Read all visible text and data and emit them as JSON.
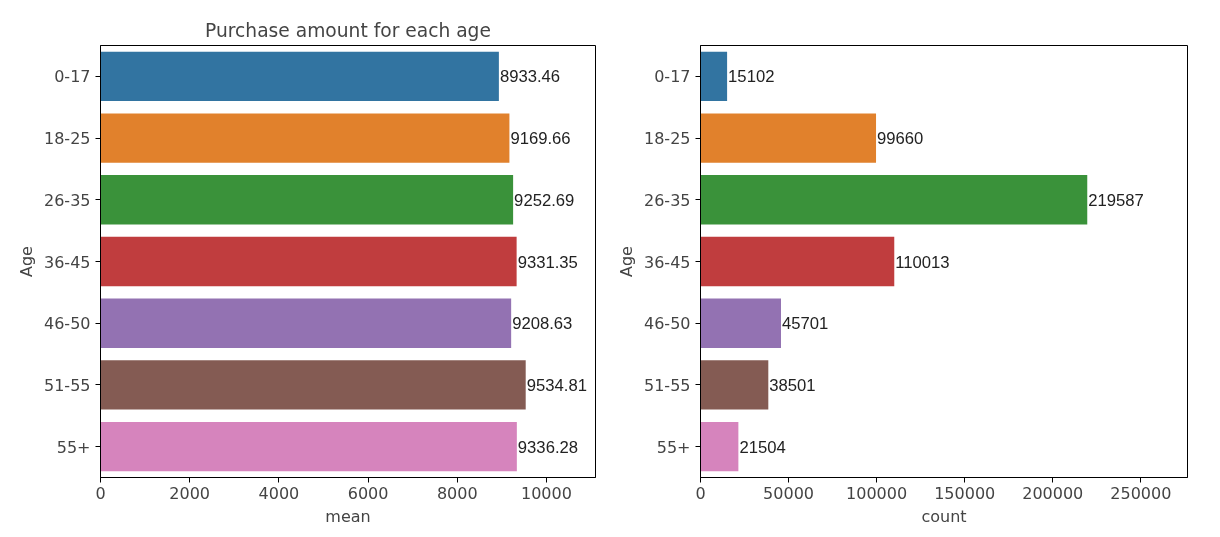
{
  "chart_data": [
    {
      "type": "bar",
      "orientation": "horizontal",
      "title": "Purchase amount for each age",
      "xlabel": "mean",
      "ylabel": "Age",
      "categories": [
        "0-17",
        "18-25",
        "26-35",
        "36-45",
        "46-50",
        "51-55",
        "55+"
      ],
      "values": [
        8933.46,
        9169.66,
        9252.69,
        9331.35,
        9208.63,
        9534.81,
        9336.28
      ],
      "colors": [
        "#3274a1",
        "#e1812c",
        "#3a923a",
        "#c03d3e",
        "#9372b2",
        "#845b53",
        "#d684bd"
      ],
      "xlim": [
        0,
        11100
      ],
      "xticks": [
        0,
        2000,
        4000,
        6000,
        8000,
        10000
      ],
      "data_labels": true
    },
    {
      "type": "bar",
      "orientation": "horizontal",
      "xlabel": "count",
      "ylabel": "Age",
      "categories": [
        "0-17",
        "18-25",
        "26-35",
        "36-45",
        "46-50",
        "51-55",
        "55+"
      ],
      "values": [
        15102,
        99660,
        219587,
        110013,
        45701,
        38501,
        21504
      ],
      "colors": [
        "#3274a1",
        "#e1812c",
        "#3a923a",
        "#c03d3e",
        "#9372b2",
        "#845b53",
        "#d684bd"
      ],
      "xlim": [
        0,
        276500
      ],
      "xticks": [
        0,
        50000,
        100000,
        150000,
        200000,
        250000
      ],
      "data_labels": true
    }
  ]
}
